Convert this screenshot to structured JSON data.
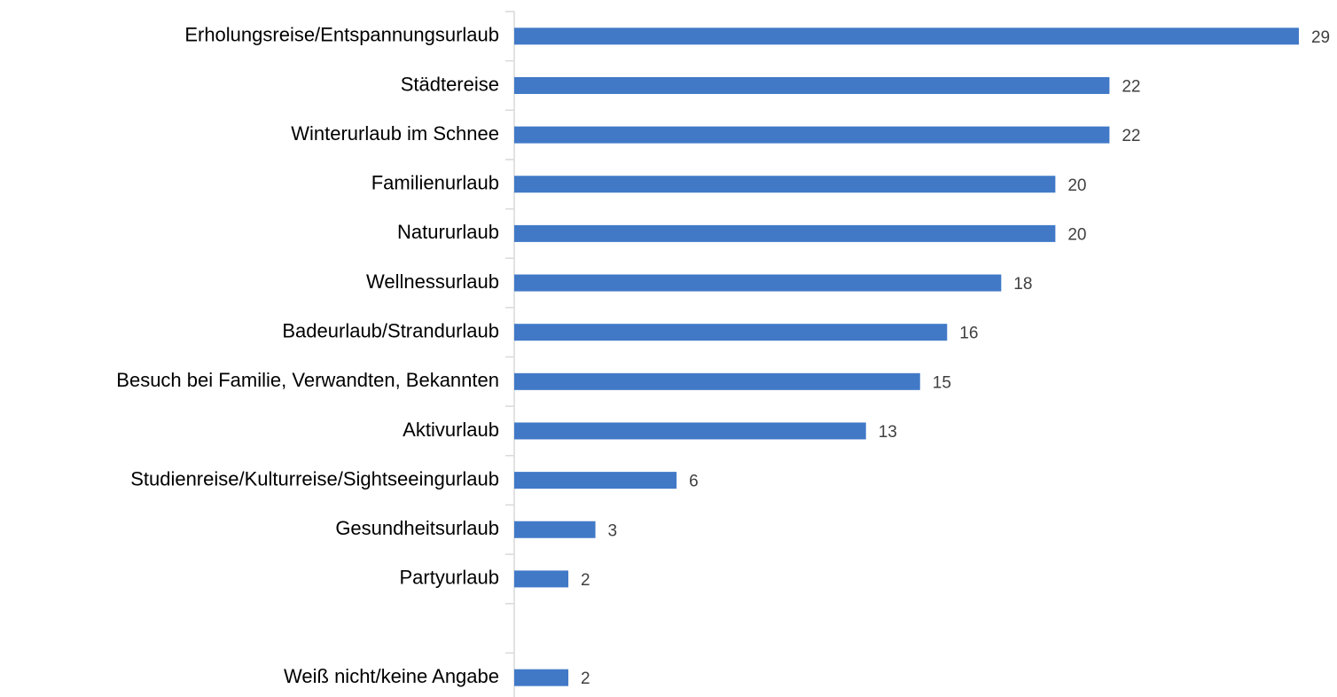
{
  "chart_data": {
    "type": "bar",
    "orientation": "horizontal",
    "categories": [
      "Erholungsreise/Entspannungsurlaub",
      "Städtereise",
      "Winterurlaub im Schnee",
      "Familienurlaub",
      "Natururlaub",
      "Wellnessurlaub",
      "Badeurlaub/Strandurlaub",
      "Besuch bei Familie, Verwandten, Bekannten",
      "Aktivurlaub",
      "Studienreise/Kulturreise/Sightseeingurlaub",
      "Gesundheitsurlaub",
      "Partyurlaub",
      null,
      "Weiß nicht/keine Angabe"
    ],
    "values": [
      29,
      22,
      22,
      20,
      20,
      18,
      16,
      15,
      13,
      6,
      3,
      2,
      null,
      2
    ],
    "color": "#4179c7",
    "xlim": [
      0,
      30
    ]
  }
}
